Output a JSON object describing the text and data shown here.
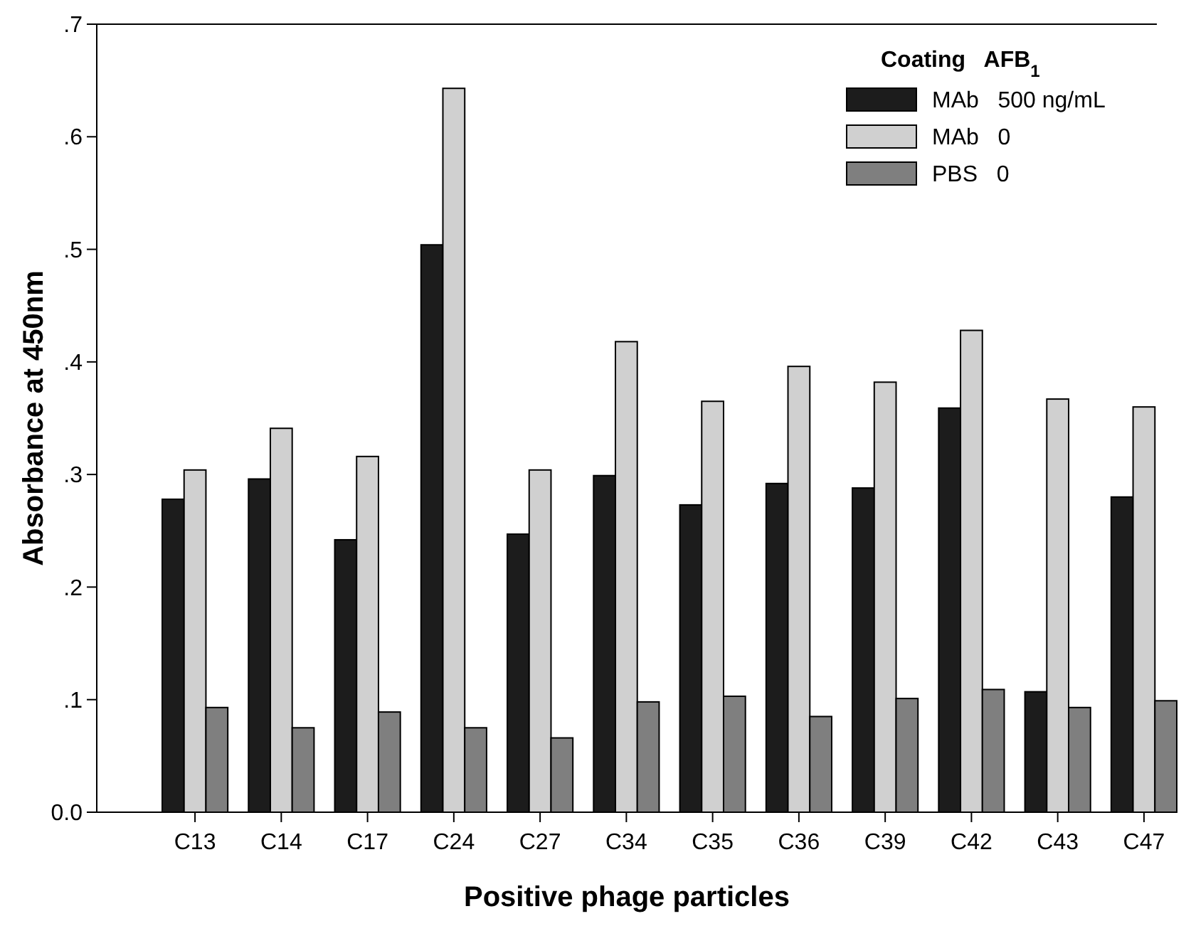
{
  "chart_data": {
    "type": "bar",
    "xlabel": "Positive phage particles",
    "ylabel": "Absorbance at 450nm",
    "legend_title": "Coating   AFB$_{1}$",
    "legend": "top right",
    "categories": [
      "C13",
      "C14",
      "C17",
      "C24",
      "C27",
      "C34",
      "C35",
      "C36",
      "C39",
      "C42",
      "C43",
      "C47"
    ],
    "ylim": [
      0,
      0.7
    ],
    "yticks": [
      {
        "value": 0,
        "label": "0.0"
      },
      {
        "value": 0.1,
        "label": ".1"
      },
      {
        "value": 0.2,
        "label": ".2"
      },
      {
        "value": 0.3,
        "label": ".3"
      },
      {
        "value": 0.4,
        "label": ".4"
      },
      {
        "value": 0.5,
        "label": ".5"
      },
      {
        "value": 0.6,
        "label": ".6"
      },
      {
        "value": 0.7,
        "label": ".7"
      }
    ],
    "series": [
      {
        "name": "MAb   500 ng/mL",
        "color": "#1c1c1c",
        "values": [
          0.278,
          0.296,
          0.242,
          0.504,
          0.247,
          0.299,
          0.273,
          0.292,
          0.288,
          0.359,
          0.107,
          0.28
        ]
      },
      {
        "name": "MAb   0",
        "color": "#d0d0d0",
        "values": [
          0.304,
          0.341,
          0.316,
          0.643,
          0.304,
          0.418,
          0.365,
          0.396,
          0.382,
          0.428,
          0.367,
          0.36
        ]
      },
      {
        "name": "PBS   0",
        "color": "#7f7f7f",
        "values": [
          0.093,
          0.075,
          0.089,
          0.075,
          0.066,
          0.098,
          0.103,
          0.085,
          0.101,
          0.109,
          0.093,
          0.099
        ]
      }
    ]
  }
}
